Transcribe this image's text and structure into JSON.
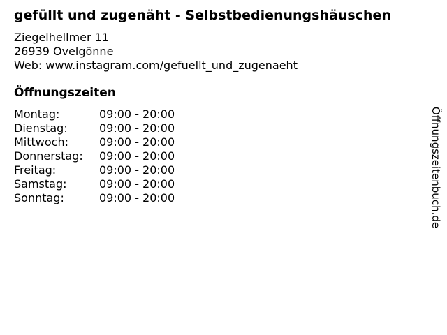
{
  "page": {
    "title": "gefüllt und zugenäht - Selbstbedienungshäuschen",
    "address": {
      "street": "Ziegelhellmer 11",
      "city": "26939 Ovelgönne",
      "web": "Web: www.instagram.com/gefuellt_und_zugenaeht"
    },
    "hours": {
      "heading": "Öffnungszeiten",
      "rows": [
        {
          "day": "Montag:",
          "time": "09:00 - 20:00"
        },
        {
          "day": "Dienstag:",
          "time": "09:00 - 20:00"
        },
        {
          "day": "Mittwoch:",
          "time": "09:00 - 20:00"
        },
        {
          "day": "Donnerstag:",
          "time": "09:00 - 20:00"
        },
        {
          "day": "Freitag:",
          "time": "09:00 - 20:00"
        },
        {
          "day": "Samstag:",
          "time": "09:00 - 20:00"
        },
        {
          "day": "Sonntag:",
          "time": "09:00 - 20:00"
        }
      ]
    },
    "watermark": "Öffnungszeitenbuch.de",
    "colors": {
      "background": "#ffffff",
      "text": "#000000"
    }
  }
}
